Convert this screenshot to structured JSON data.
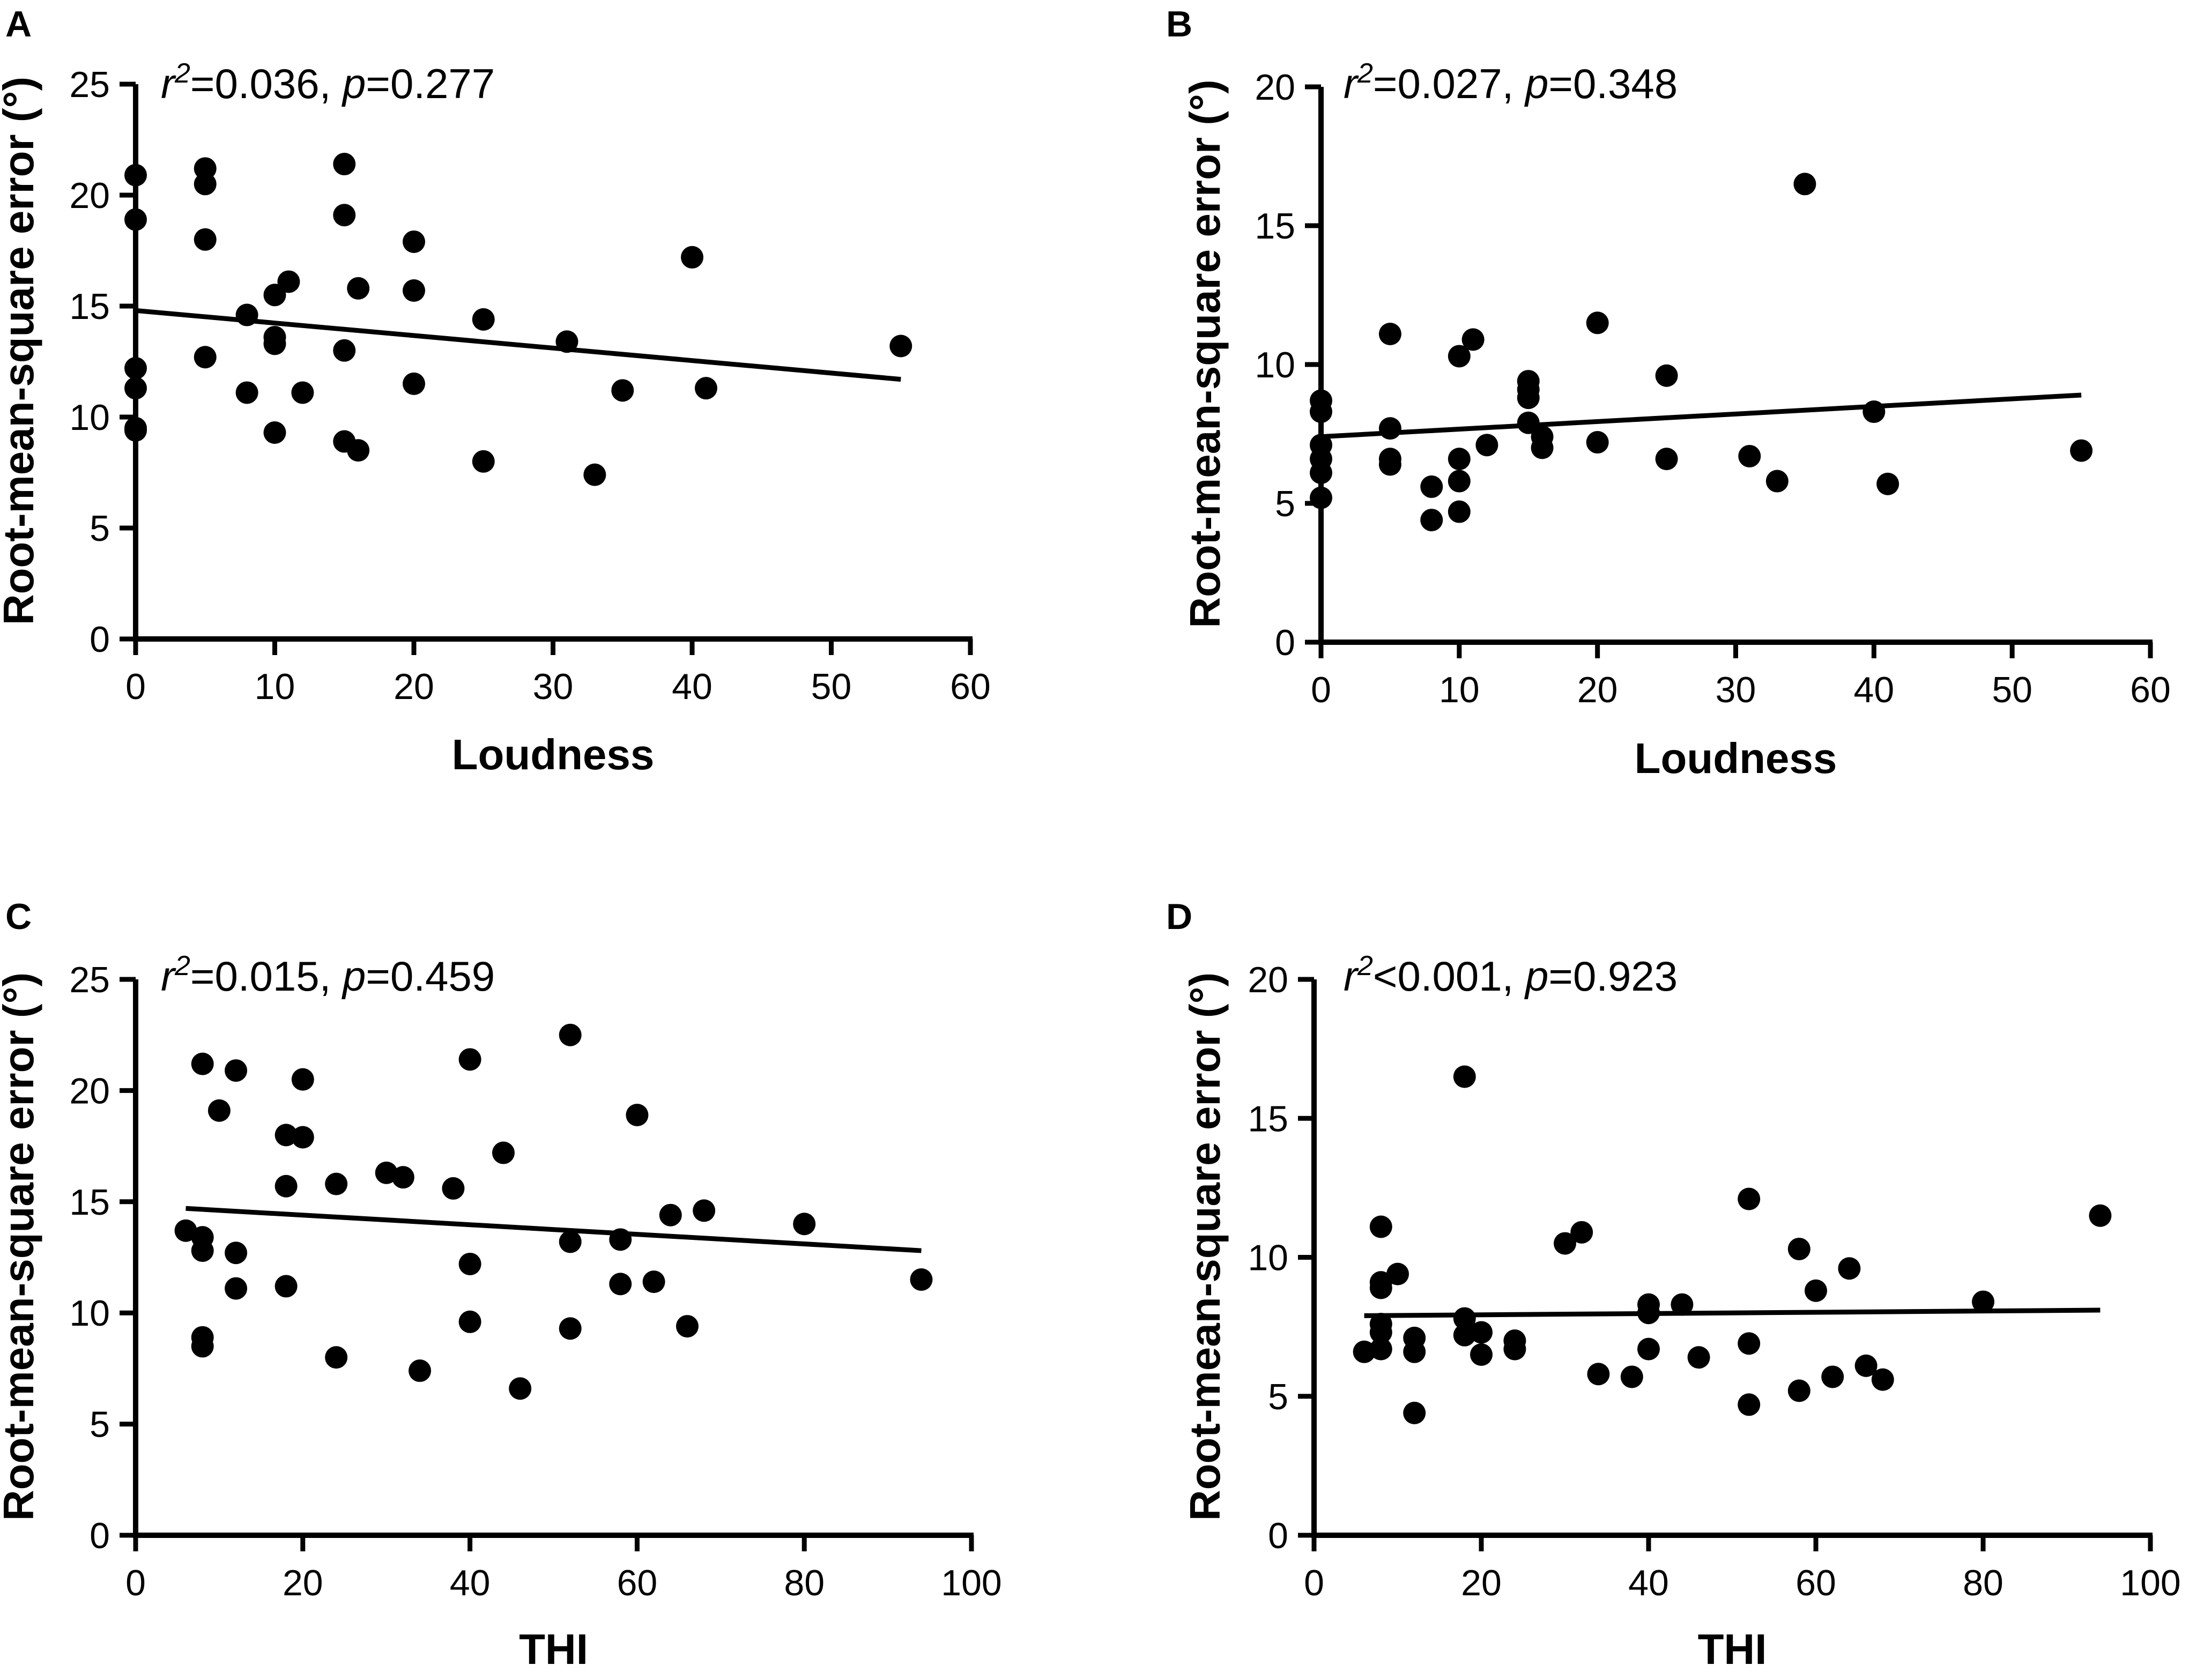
{
  "chart_data": [
    {
      "type": "scatter",
      "panel": "A",
      "stat_parts": [
        {
          "t": "r",
          "i": true
        },
        {
          "t": "2",
          "sup": true,
          "i": true
        },
        {
          "t": "=0.036, "
        },
        {
          "t": "p",
          "i": true
        },
        {
          "t": "=0.277"
        }
      ],
      "xlabel": "Loudness",
      "ylabel": "Root-mean-square error (°)",
      "xlim": [
        0,
        60
      ],
      "ylim": [
        0,
        25
      ],
      "xticks": [
        0,
        10,
        20,
        30,
        40,
        50,
        60
      ],
      "yticks": [
        0,
        5,
        10,
        15,
        20,
        25
      ],
      "points": [
        [
          0,
          20.9
        ],
        [
          0,
          18.9
        ],
        [
          0,
          12.2
        ],
        [
          0,
          11.3
        ],
        [
          0,
          9.5
        ],
        [
          0,
          9.4
        ],
        [
          5,
          21.2
        ],
        [
          5,
          20.5
        ],
        [
          5,
          18
        ],
        [
          5,
          12.7
        ],
        [
          8,
          14.6
        ],
        [
          8,
          11.1
        ],
        [
          10,
          15.5
        ],
        [
          10,
          13.6
        ],
        [
          10,
          13.3
        ],
        [
          10,
          9.3
        ],
        [
          11,
          16.1
        ],
        [
          12,
          11.1
        ],
        [
          15,
          21.4
        ],
        [
          15,
          19.1
        ],
        [
          15,
          13
        ],
        [
          15,
          8.9
        ],
        [
          16,
          15.8
        ],
        [
          16,
          8.5
        ],
        [
          20,
          17.9
        ],
        [
          20,
          15.7
        ],
        [
          20,
          11.5
        ],
        [
          25,
          14.4
        ],
        [
          25,
          8
        ],
        [
          31,
          13.4
        ],
        [
          33,
          7.4
        ],
        [
          35,
          11.2
        ],
        [
          40,
          17.2
        ],
        [
          41,
          11.3
        ],
        [
          55,
          13.2
        ]
      ],
      "fit_line": {
        "x": [
          0,
          55
        ],
        "y": [
          14.8,
          11.7
        ]
      }
    },
    {
      "type": "scatter",
      "panel": "B",
      "stat_parts": [
        {
          "t": "r",
          "i": true
        },
        {
          "t": "2",
          "sup": true,
          "i": true
        },
        {
          "t": "=0.027, "
        },
        {
          "t": "p",
          "i": true
        },
        {
          "t": "=0.348"
        }
      ],
      "xlabel": "Loudness",
      "ylabel": "Root-mean-square error (°)",
      "xlim": [
        0,
        60
      ],
      "ylim": [
        0,
        20
      ],
      "xticks": [
        0,
        10,
        20,
        30,
        40,
        50,
        60
      ],
      "yticks": [
        0,
        5,
        10,
        15,
        20
      ],
      "points": [
        [
          0,
          8.7
        ],
        [
          0,
          8.3
        ],
        [
          0,
          7.1
        ],
        [
          0,
          6.6
        ],
        [
          0,
          6.1
        ],
        [
          0,
          5.2
        ],
        [
          5,
          11.1
        ],
        [
          5,
          7.7
        ],
        [
          5,
          6.6
        ],
        [
          5,
          6.4
        ],
        [
          8,
          5.6
        ],
        [
          8,
          4.4
        ],
        [
          10,
          10.3
        ],
        [
          10,
          6.6
        ],
        [
          10,
          5.8
        ],
        [
          10,
          4.7
        ],
        [
          11,
          10.9
        ],
        [
          12,
          7.1
        ],
        [
          15,
          9.4
        ],
        [
          15,
          9.1
        ],
        [
          15,
          8.8
        ],
        [
          15,
          7.9
        ],
        [
          16,
          7.4
        ],
        [
          16,
          7
        ],
        [
          20,
          11.5
        ],
        [
          20,
          7.2
        ],
        [
          25,
          9.6
        ],
        [
          25,
          6.6
        ],
        [
          31,
          6.7
        ],
        [
          33,
          5.8
        ],
        [
          35,
          16.5
        ],
        [
          40,
          8.3
        ],
        [
          41,
          5.7
        ],
        [
          55,
          6.9
        ]
      ],
      "fit_line": {
        "x": [
          0,
          55
        ],
        "y": [
          7.4,
          8.9
        ]
      }
    },
    {
      "type": "scatter",
      "panel": "C",
      "stat_parts": [
        {
          "t": "r",
          "i": true
        },
        {
          "t": "2",
          "sup": true,
          "i": true
        },
        {
          "t": "=0.015, "
        },
        {
          "t": "p",
          "i": true
        },
        {
          "t": "=0.459"
        }
      ],
      "xlabel": "THI",
      "ylabel": "Root-mean-square error (°)",
      "xlim": [
        0,
        100
      ],
      "ylim": [
        0,
        25
      ],
      "xticks": [
        0,
        20,
        40,
        60,
        80,
        100
      ],
      "yticks": [
        0,
        5,
        10,
        15,
        20,
        25
      ],
      "points": [
        [
          6,
          13.7
        ],
        [
          8,
          21.2
        ],
        [
          8,
          13.4
        ],
        [
          8,
          12.8
        ],
        [
          8,
          8.9
        ],
        [
          8,
          8.5
        ],
        [
          10,
          19.1
        ],
        [
          12,
          20.9
        ],
        [
          12,
          12.7
        ],
        [
          12,
          11.1
        ],
        [
          18,
          18
        ],
        [
          18,
          15.7
        ],
        [
          18,
          11.2
        ],
        [
          20,
          20.5
        ],
        [
          20,
          17.9
        ],
        [
          24,
          15.8
        ],
        [
          24,
          8
        ],
        [
          30,
          16.3
        ],
        [
          32,
          16.1
        ],
        [
          34,
          7.4
        ],
        [
          38,
          15.6
        ],
        [
          40,
          21.4
        ],
        [
          40,
          12.2
        ],
        [
          40,
          9.6
        ],
        [
          44,
          17.2
        ],
        [
          46,
          6.6
        ],
        [
          52,
          22.5
        ],
        [
          52,
          13.2
        ],
        [
          52,
          9.3
        ],
        [
          58,
          13.3
        ],
        [
          58,
          11.3
        ],
        [
          60,
          18.9
        ],
        [
          62,
          11.4
        ],
        [
          64,
          14.4
        ],
        [
          66,
          9.4
        ],
        [
          68,
          14.6
        ],
        [
          80,
          14
        ],
        [
          94,
          11.5
        ]
      ],
      "fit_line": {
        "x": [
          6,
          94
        ],
        "y": [
          14.7,
          12.8
        ]
      }
    },
    {
      "type": "scatter",
      "panel": "D",
      "stat_parts": [
        {
          "t": "r",
          "i": true
        },
        {
          "t": "2",
          "sup": true,
          "i": true
        },
        {
          "t": "<0.001, "
        },
        {
          "t": "p",
          "i": true
        },
        {
          "t": "=0.923"
        }
      ],
      "xlabel": "THI",
      "ylabel": "Root-mean-square error (°)",
      "xlim": [
        0,
        100
      ],
      "ylim": [
        0,
        20
      ],
      "xticks": [
        0,
        20,
        40,
        60,
        80,
        100
      ],
      "yticks": [
        0,
        5,
        10,
        15,
        20
      ],
      "points": [
        [
          6,
          6.6
        ],
        [
          8,
          11.1
        ],
        [
          8,
          9.1
        ],
        [
          8,
          8.9
        ],
        [
          8,
          7.6
        ],
        [
          8,
          7.3
        ],
        [
          8,
          6.7
        ],
        [
          10,
          9.4
        ],
        [
          12,
          7.1
        ],
        [
          12,
          6.6
        ],
        [
          12,
          4.4
        ],
        [
          18,
          16.5
        ],
        [
          18,
          7.8
        ],
        [
          18,
          7.2
        ],
        [
          20,
          7.3
        ],
        [
          20,
          6.5
        ],
        [
          24,
          7
        ],
        [
          24,
          6.7
        ],
        [
          30,
          10.5
        ],
        [
          32,
          10.9
        ],
        [
          34,
          5.8
        ],
        [
          38,
          5.7
        ],
        [
          40,
          8.3
        ],
        [
          40,
          8
        ],
        [
          40,
          6.7
        ],
        [
          44,
          8.3
        ],
        [
          46,
          6.4
        ],
        [
          52,
          12.1
        ],
        [
          52,
          6.9
        ],
        [
          52,
          4.7
        ],
        [
          58,
          10.3
        ],
        [
          58,
          5.2
        ],
        [
          60,
          8.8
        ],
        [
          62,
          5.7
        ],
        [
          64,
          9.6
        ],
        [
          66,
          6.1
        ],
        [
          68,
          5.6
        ],
        [
          80,
          8.4
        ],
        [
          94,
          11.5
        ]
      ],
      "fit_line": {
        "x": [
          6,
          94
        ],
        "y": [
          7.9,
          8.1
        ]
      }
    }
  ]
}
